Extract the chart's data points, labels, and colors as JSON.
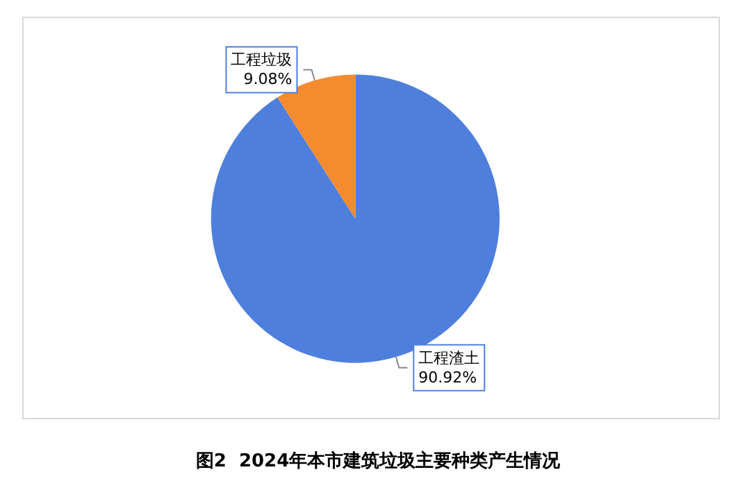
{
  "chart_data": {
    "type": "pie",
    "title": "图2  2024年本市建筑垃圾主要种类产生情况",
    "categories": [
      "工程渣土",
      "工程垃圾"
    ],
    "values": [
      90.92,
      9.08
    ],
    "colors": [
      "#4f7fdc",
      "#f58b2f"
    ],
    "value_labels": [
      "90.92%",
      "9.08%"
    ],
    "legend": false
  }
}
